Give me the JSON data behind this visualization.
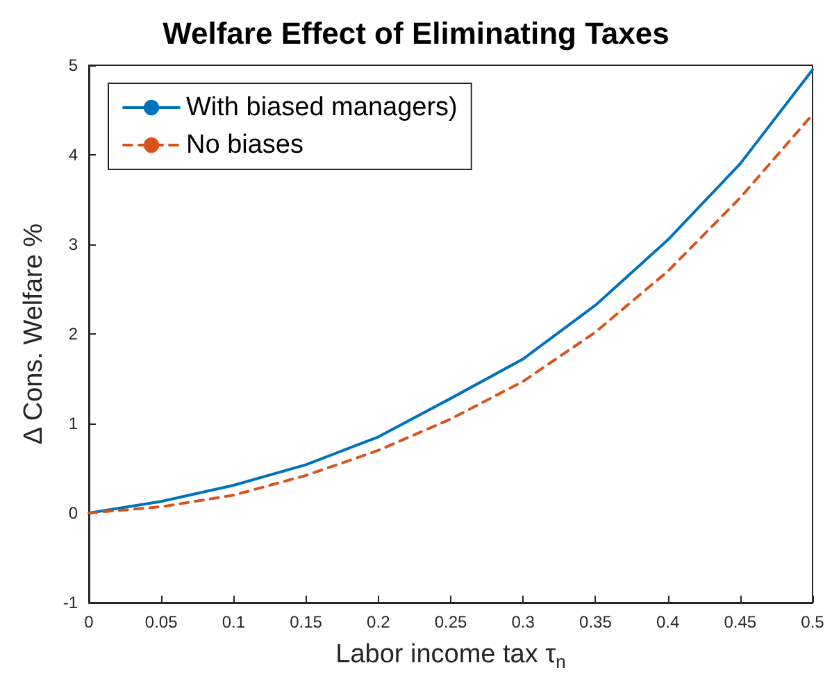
{
  "chart_data": {
    "type": "line",
    "title": "Welfare Effect of Eliminating Taxes",
    "xlabel": "Labor income tax τ$_{n}$",
    "ylabel": "Δ Cons. Welfare %",
    "x": [
      0,
      0.05,
      0.1,
      0.15,
      0.2,
      0.25,
      0.3,
      0.35,
      0.4,
      0.45,
      0.5
    ],
    "series": [
      {
        "name": "With biased managers)",
        "color": "#0072bd",
        "line_style": "solid",
        "values": [
          0,
          0.13,
          0.31,
          0.54,
          0.85,
          1.28,
          1.72,
          2.32,
          3.05,
          3.9,
          4.95
        ]
      },
      {
        "name": "No biases",
        "color": "#d95319",
        "line_style": "dashed",
        "values": [
          0,
          0.07,
          0.2,
          0.42,
          0.7,
          1.05,
          1.47,
          2.02,
          2.7,
          3.52,
          4.45
        ]
      }
    ],
    "xlim": [
      0,
      0.5
    ],
    "xticks": [
      0,
      0.05,
      0.1,
      0.15,
      0.2,
      0.25,
      0.3,
      0.35,
      0.4,
      0.45,
      0.5
    ],
    "ylim": [
      -1,
      5
    ],
    "yticks": [
      -1,
      0,
      1,
      2,
      3,
      4,
      5
    ],
    "grid": false,
    "legend": "top left",
    "marker": "none"
  }
}
